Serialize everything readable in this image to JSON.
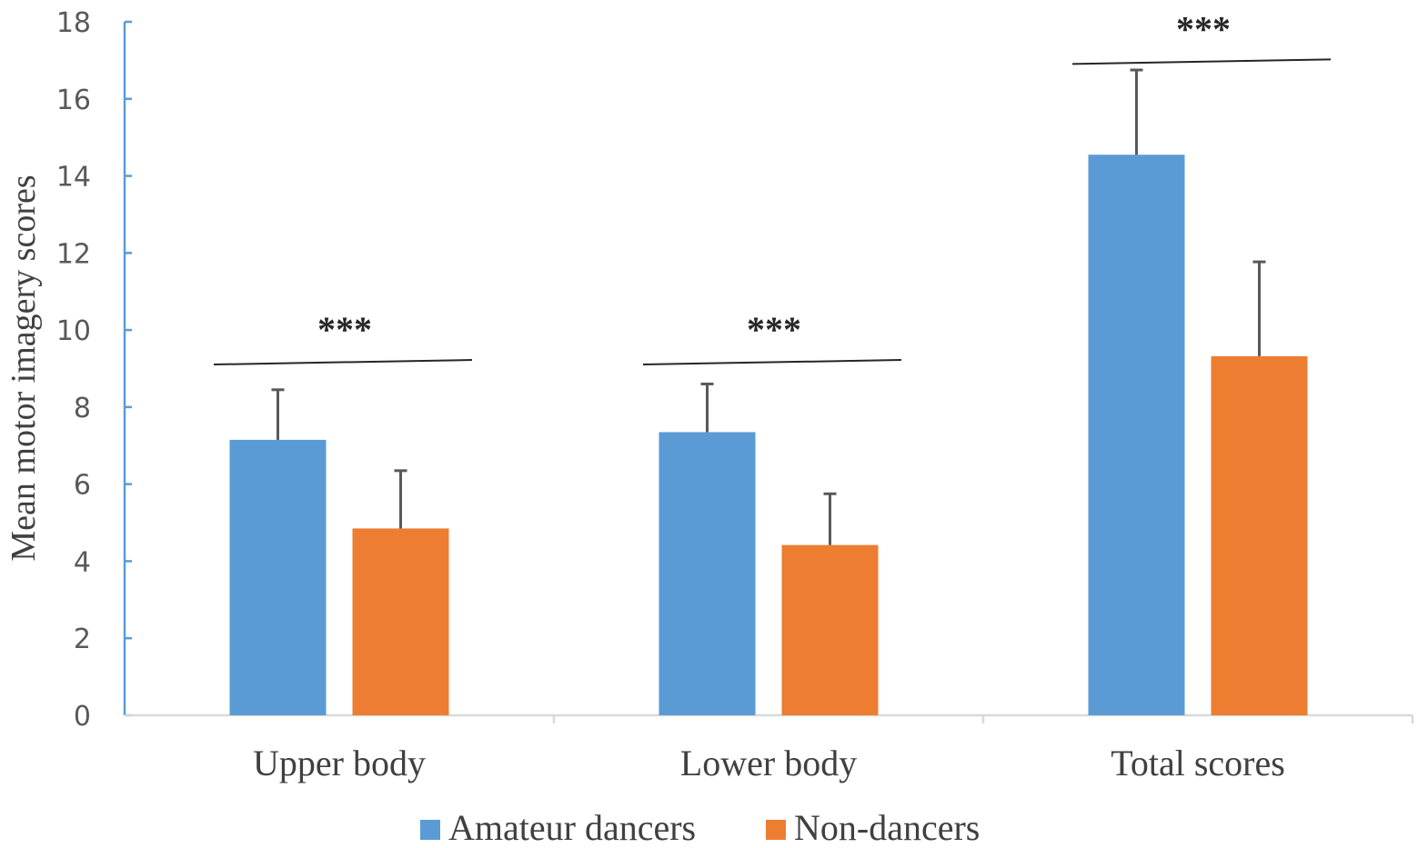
{
  "chart_data": {
    "type": "bar",
    "title": "",
    "xlabel": "",
    "ylabel": "Mean motor imagery scores",
    "ylim": [
      0,
      18
    ],
    "yticks": [
      "0",
      "2",
      "4",
      "6",
      "8",
      "10",
      "12",
      "14",
      "16",
      "18"
    ],
    "categories": [
      "Upper body",
      "Lower body",
      "Total scores"
    ],
    "series": [
      {
        "name": "Amateur dancers",
        "color": "#5B9BD5",
        "values": [
          7.15,
          7.35,
          14.55
        ],
        "errors": [
          1.3,
          1.25,
          2.2
        ]
      },
      {
        "name": "Non-dancers",
        "color": "#ED7D31",
        "values": [
          4.85,
          4.42,
          9.32
        ],
        "errors": [
          1.5,
          1.33,
          2.45
        ]
      }
    ],
    "significance": [
      {
        "category": "Upper body",
        "label": "***",
        "bar_level": 9.2
      },
      {
        "category": "Lower body",
        "label": "***",
        "bar_level": 9.2
      },
      {
        "category": "Total scores",
        "label": "***",
        "bar_level": 17.0
      }
    ],
    "legend_position": "bottom-center",
    "grid": false
  }
}
